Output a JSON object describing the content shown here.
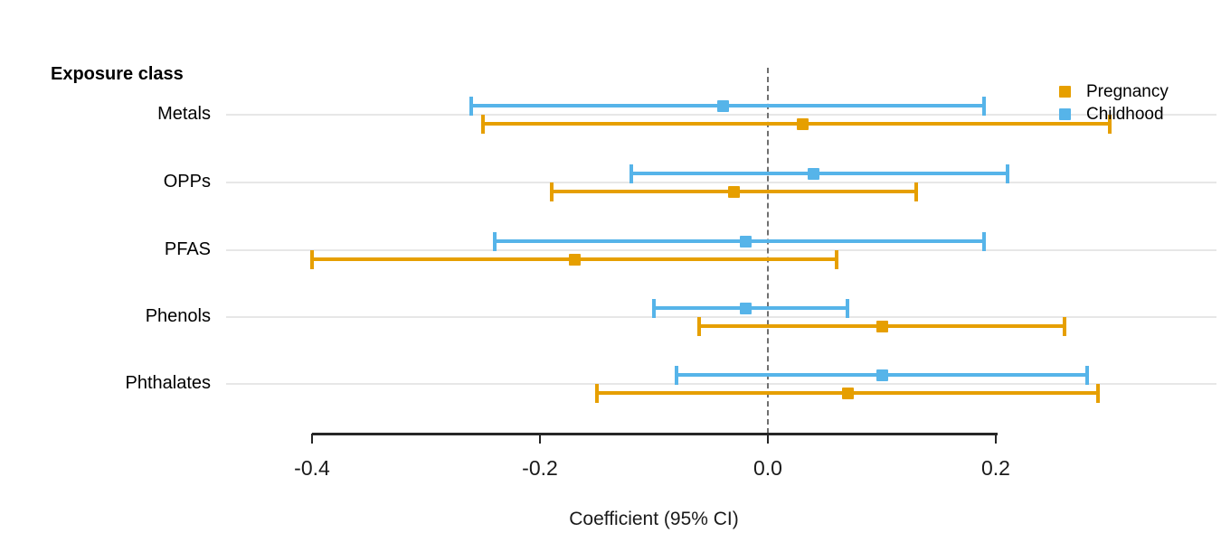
{
  "header": {
    "label": "Exposure class"
  },
  "axis": {
    "title": "Coefficient (95% CI)"
  },
  "legend": {
    "position": "top-right",
    "items": [
      {
        "label": "Pregnancy",
        "color": "#E69F00"
      },
      {
        "label": "Childhood",
        "color": "#56B4E9"
      }
    ]
  },
  "colors": {
    "pregnancy": "#E69F00",
    "childhood": "#56B4E9",
    "gridline": "#e7e7e7",
    "reference_line": "#6f6f6f",
    "axis": "#262626",
    "background": "#ffffff"
  },
  "chart_data": {
    "type": "scatter",
    "subtype": "forest-plot-horizontal-error-bars",
    "title": "",
    "xlabel": "Coefficient (95% CI)",
    "ylabel": "Exposure class",
    "categories": [
      "Metals",
      "OPPs",
      "PFAS",
      "Phenols",
      "Phthalates"
    ],
    "x_ticks": [
      -0.4,
      -0.2,
      0.0,
      0.2
    ],
    "x_tick_labels": [
      "-0.4",
      "-0.2",
      "0.0",
      "0.2"
    ],
    "xlim": [
      -0.4,
      0.2
    ],
    "reference_line_x": 0.0,
    "grid": "horizontal light gray line per category row",
    "legend_position": "top-right",
    "series": [
      {
        "name": "Pregnancy",
        "color": "#E69F00",
        "estimates": [
          0.03,
          -0.03,
          -0.17,
          0.1,
          0.07
        ],
        "ci_low": [
          -0.25,
          -0.19,
          -0.4,
          -0.06,
          -0.15
        ],
        "ci_high": [
          0.3,
          0.13,
          0.06,
          0.26,
          0.29
        ]
      },
      {
        "name": "Childhood",
        "color": "#56B4E9",
        "estimates": [
          -0.04,
          0.04,
          -0.02,
          -0.02,
          0.1
        ],
        "ci_low": [
          -0.26,
          -0.12,
          -0.24,
          -0.1,
          -0.08
        ],
        "ci_high": [
          0.19,
          0.21,
          0.19,
          0.07,
          0.28
        ]
      }
    ]
  }
}
